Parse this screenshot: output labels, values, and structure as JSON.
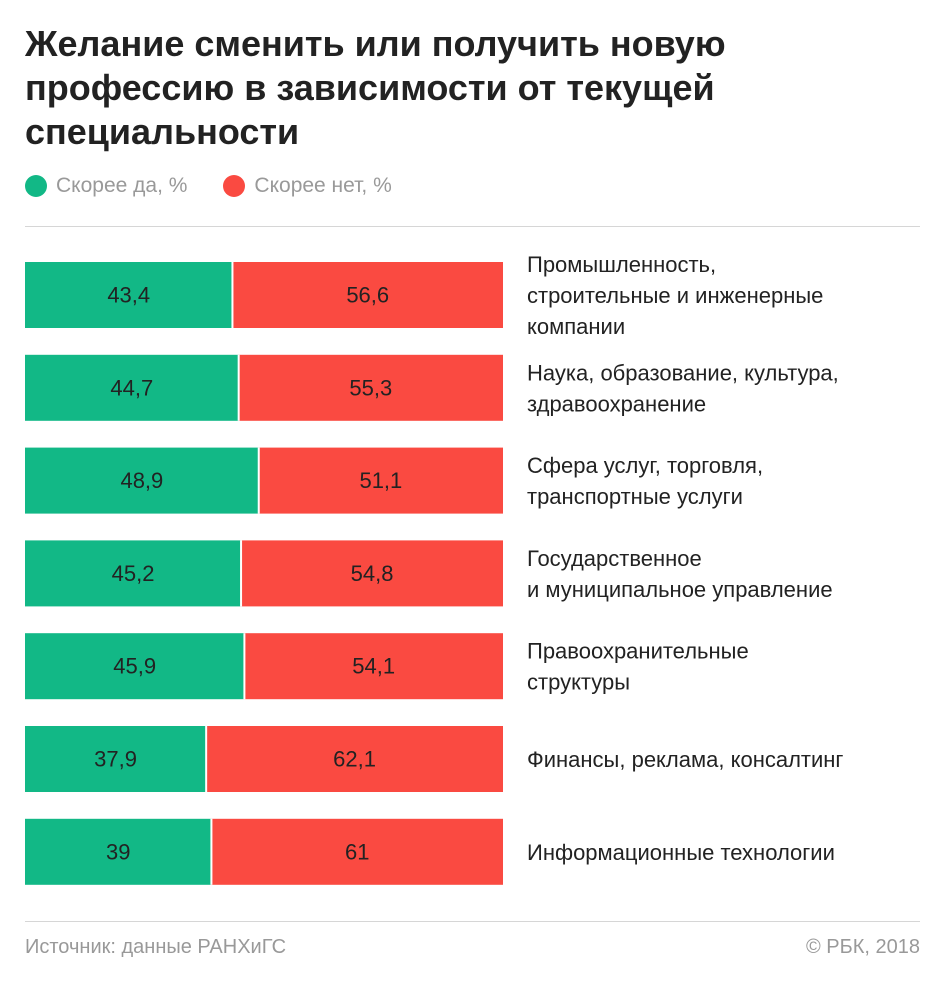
{
  "title": "Желание сменить или получить новую профессию в зависимости от текущей специальности",
  "legend": [
    {
      "label": "Скорее да, %",
      "color": "#12b886"
    },
    {
      "label": "Скорее нет, %",
      "color": "#fa4a41"
    }
  ],
  "chart_data": {
    "type": "bar",
    "orientation": "horizontal",
    "stacked": true,
    "categories": [
      [
        "Промышленность,",
        "строительные и инженерные",
        "компании"
      ],
      [
        "Наука, образование, культура,",
        "здравоохранение"
      ],
      [
        "Сфера услуг, торговля,",
        "транспортные услуги"
      ],
      [
        "Государственное",
        "и муниципальное управление"
      ],
      [
        "Правоохранительные",
        "структуры"
      ],
      [
        "Финансы, реклама, консалтинг"
      ],
      [
        "Информационные технологии"
      ]
    ],
    "series": [
      {
        "name": "Скорее да, %",
        "color": "#12b886",
        "values": [
          43.4,
          44.7,
          48.9,
          45.2,
          45.9,
          37.9,
          39
        ],
        "labels": [
          "43,4",
          "44,7",
          "48,9",
          "45,2",
          "45,9",
          "37,9",
          "39"
        ]
      },
      {
        "name": "Скорее нет, %",
        "color": "#fa4a41",
        "values": [
          56.6,
          55.3,
          51.1,
          54.8,
          54.1,
          62.1,
          61
        ],
        "labels": [
          "56,6",
          "55,3",
          "51,1",
          "54,8",
          "54,1",
          "62,1",
          "61"
        ]
      }
    ],
    "xlim": [
      0,
      100
    ],
    "legend_position": "top-left",
    "grid": false
  },
  "footer": {
    "source": "Источник: данные РАНХиГС",
    "copyright": "© РБК, 2018"
  }
}
